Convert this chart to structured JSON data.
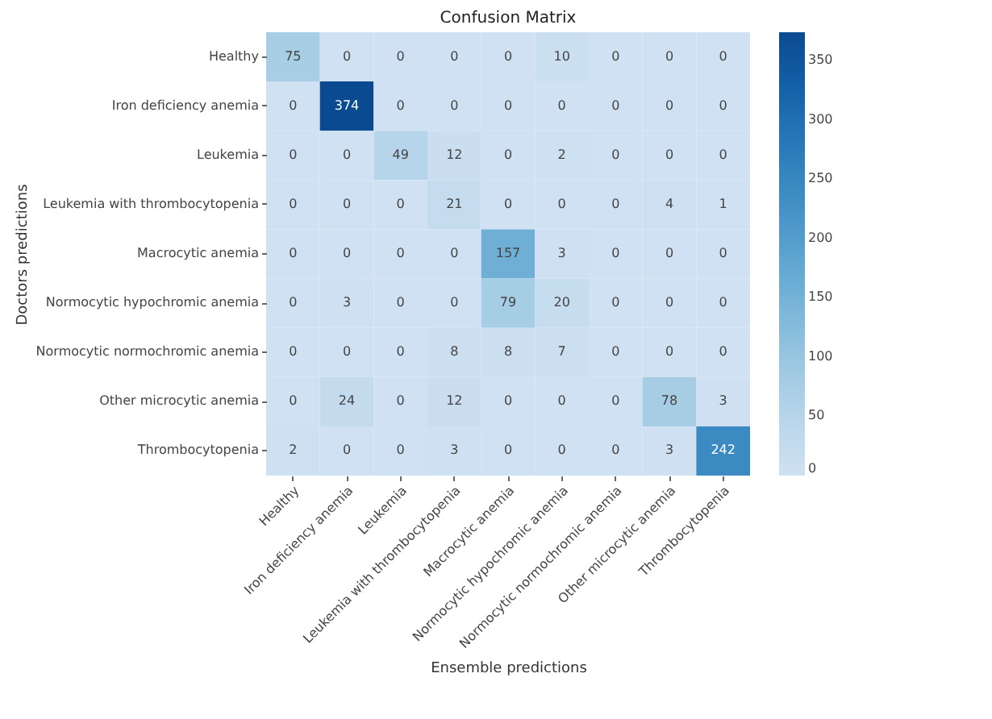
{
  "chart_data": {
    "type": "heatmap",
    "title": "Confusion Matrix",
    "xlabel": "Ensemble predictions",
    "ylabel": "Doctors predictions",
    "categories": [
      "Healthy",
      "Iron deficiency anemia",
      "Leukemia",
      "Leukemia with thrombocytopenia",
      "Macrocytic anemia",
      "Normocytic hypochromic anemia",
      "Normocytic normochromic anemia",
      "Other microcytic anemia",
      "Thrombocytopenia"
    ],
    "y_categories": [
      "Healthy",
      "Iron deficiency anemia",
      "Leukemia",
      "Leukemia with thrombocytopenia",
      "Macrocytic anemia",
      "Normocytic hypochromic anemia",
      "Normocytic normochromic anemia",
      "Other microcytic anemia",
      "Thrombocytopenia"
    ],
    "cells": [
      [
        75,
        0,
        0,
        0,
        0,
        10,
        0,
        0,
        0
      ],
      [
        0,
        374,
        0,
        0,
        0,
        0,
        0,
        0,
        0
      ],
      [
        0,
        0,
        49,
        12,
        0,
        2,
        0,
        0,
        0
      ],
      [
        0,
        0,
        0,
        21,
        0,
        0,
        0,
        4,
        1
      ],
      [
        0,
        0,
        0,
        0,
        157,
        3,
        0,
        0,
        0
      ],
      [
        0,
        3,
        0,
        0,
        79,
        20,
        0,
        0,
        0
      ],
      [
        0,
        0,
        0,
        8,
        8,
        7,
        0,
        0,
        0
      ],
      [
        0,
        24,
        0,
        12,
        0,
        0,
        0,
        78,
        3
      ],
      [
        2,
        0,
        0,
        3,
        0,
        0,
        0,
        3,
        242
      ]
    ],
    "clim": [
      0,
      374
    ],
    "cticks": [
      0,
      50,
      100,
      150,
      200,
      250,
      300,
      350
    ],
    "data_labels": true
  }
}
